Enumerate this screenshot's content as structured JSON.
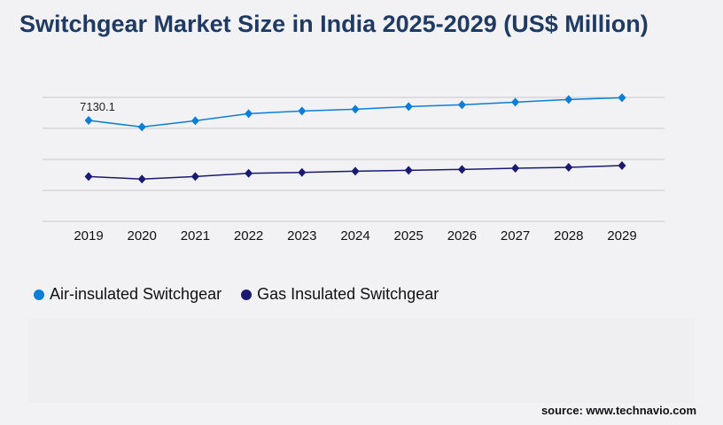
{
  "title": "Switchgear Market Size in India 2025-2029 (US$ Million)",
  "source": "source: www.technavio.com",
  "chart_data": {
    "type": "line",
    "title": "Switchgear Market Size in India 2025-2029 (US$ Million)",
    "x": [
      "2019",
      "2020",
      "2021",
      "2022",
      "2023",
      "2024",
      "2025",
      "2026",
      "2027",
      "2028",
      "2029"
    ],
    "ylim": [
      0,
      8760
    ],
    "grid": true,
    "legend_position": "bottom-left",
    "annotations": [
      {
        "series": 0,
        "index": 0,
        "text": "7130.1"
      }
    ],
    "series": [
      {
        "name": "Air-insulated Switchgear",
        "color": "#0a7fd8",
        "values": [
          7130.1,
          6674,
          7112,
          7612,
          7800,
          7925,
          8113,
          8238,
          8425,
          8613,
          8738
        ]
      },
      {
        "name": "Gas Insulated Switchgear",
        "color": "#1b1a72",
        "values": [
          3171,
          2984,
          3171,
          3396,
          3459,
          3547,
          3609,
          3672,
          3753,
          3816,
          3941
        ]
      }
    ]
  }
}
